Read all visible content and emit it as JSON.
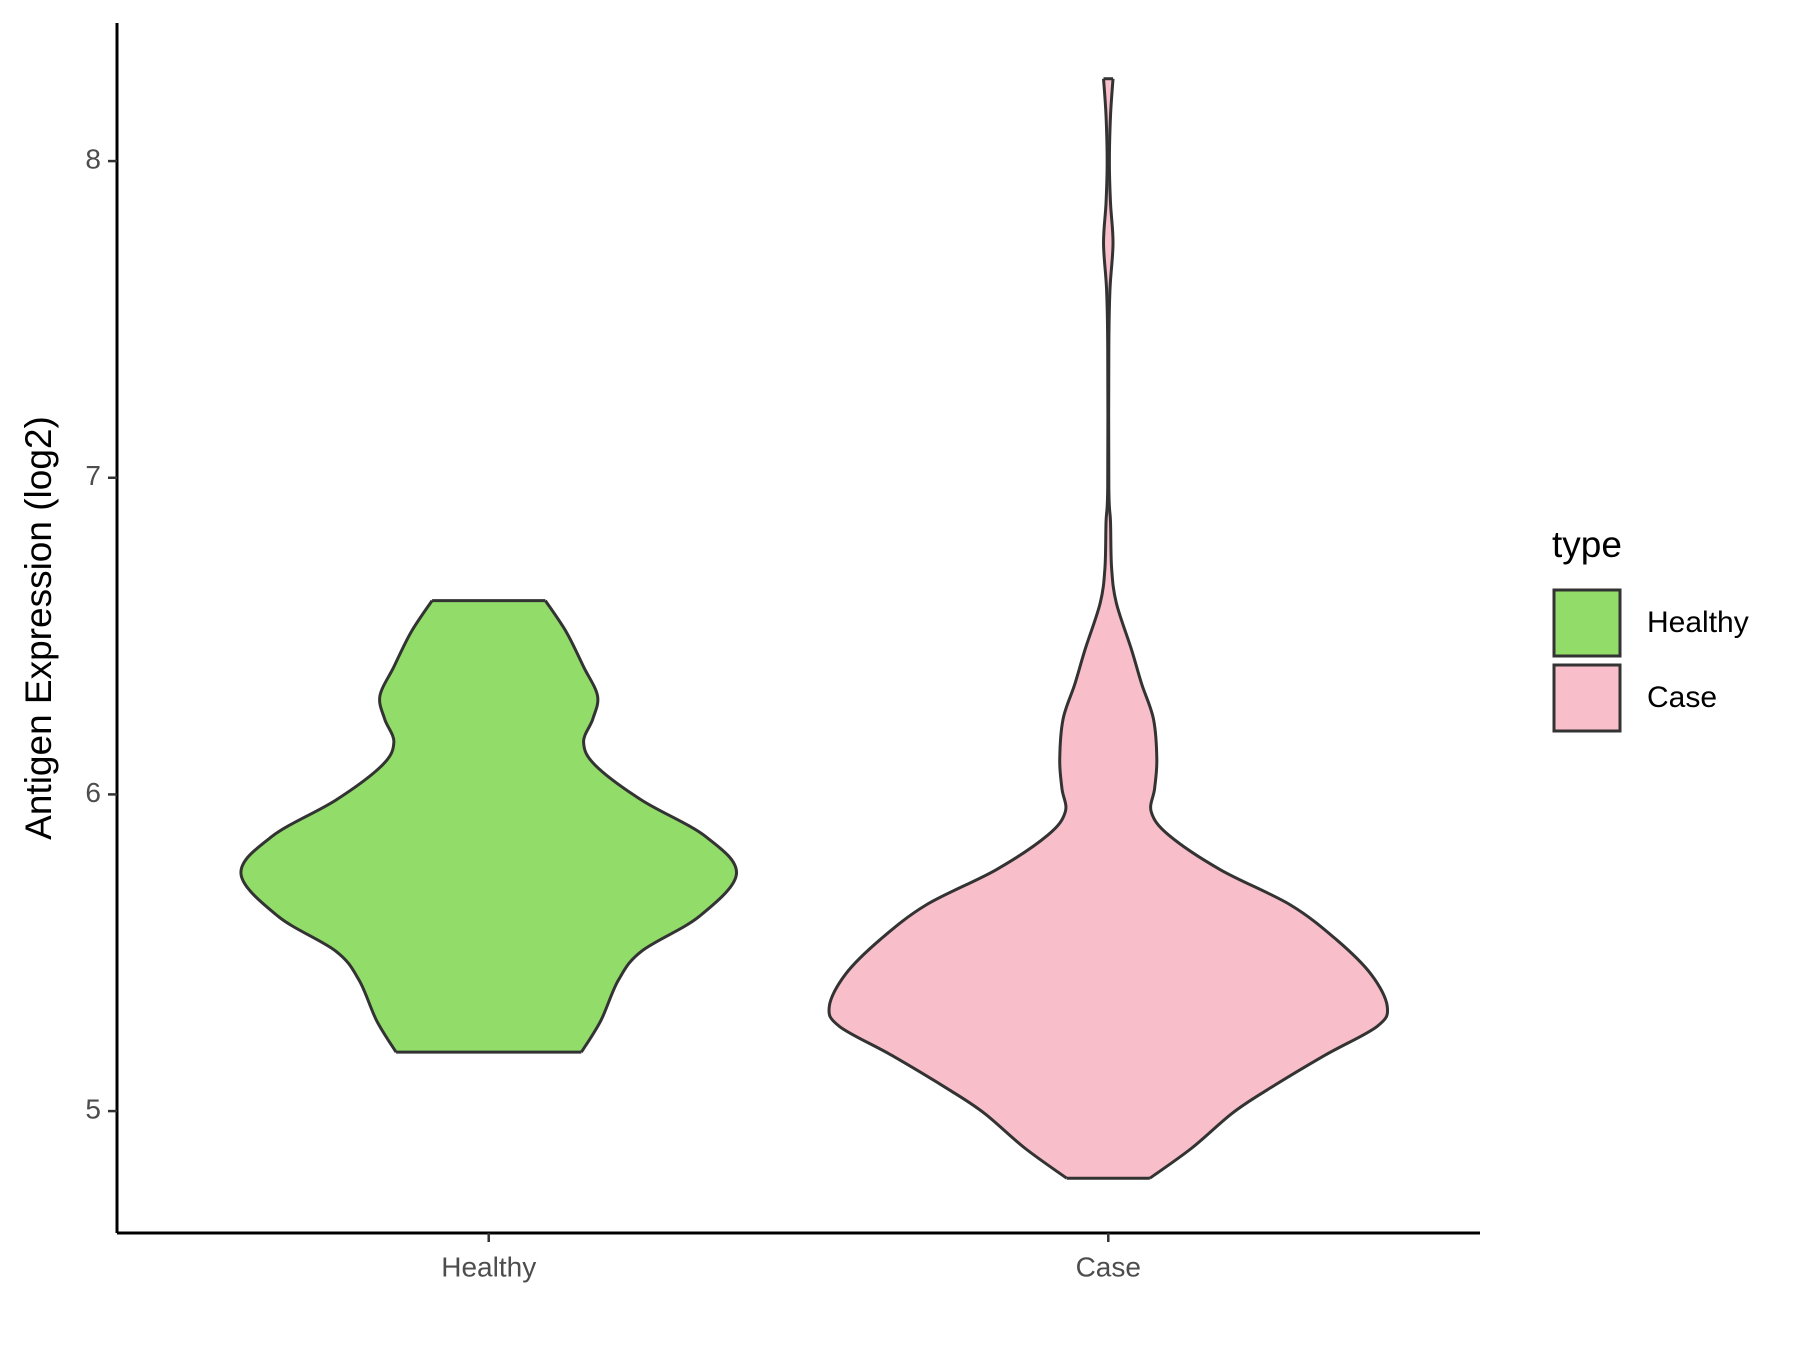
{
  "chart_data": {
    "type": "violin",
    "y_label": "Antigen Expression (log2)",
    "legend_title": "type",
    "categories": [
      "Healthy",
      "Case"
    ],
    "ylim": [
      4.615,
      8.436
    ],
    "yticks": [
      5,
      6,
      7,
      8
    ],
    "series": [
      {
        "name": "Healthy",
        "color": "#92dc6a",
        "y": [
          5.186,
          5.286,
          5.414,
          5.505,
          5.615,
          5.75,
          5.868,
          5.982,
          6.092,
          6.165,
          6.238,
          6.311,
          6.403,
          6.513,
          6.612
        ],
        "density": [
          0.332,
          0.402,
          0.465,
          0.548,
          0.755,
          0.888,
          0.776,
          0.548,
          0.382,
          0.34,
          0.373,
          0.39,
          0.34,
          0.278,
          0.203
        ]
      },
      {
        "name": "Case",
        "color": "#f8bfca",
        "y": [
          4.788,
          4.883,
          4.993,
          5.066,
          5.176,
          5.267,
          5.33,
          5.432,
          5.542,
          5.652,
          5.762,
          5.872,
          5.945,
          6.018,
          6.11,
          6.238,
          6.348,
          6.458,
          6.604,
          6.714,
          6.861,
          6.971,
          7.41,
          7.593,
          7.74,
          7.868,
          7.996,
          8.143,
          8.26
        ],
        "density": [
          0.149,
          0.299,
          0.444,
          0.568,
          0.776,
          0.963,
          1.0,
          0.942,
          0.817,
          0.651,
          0.402,
          0.216,
          0.154,
          0.166,
          0.174,
          0.162,
          0.12,
          0.083,
          0.029,
          0.012,
          0.008,
          0.002,
          0.002,
          0.006,
          0.017,
          0.008,
          0.004,
          0.008,
          0.017
        ]
      }
    ]
  }
}
